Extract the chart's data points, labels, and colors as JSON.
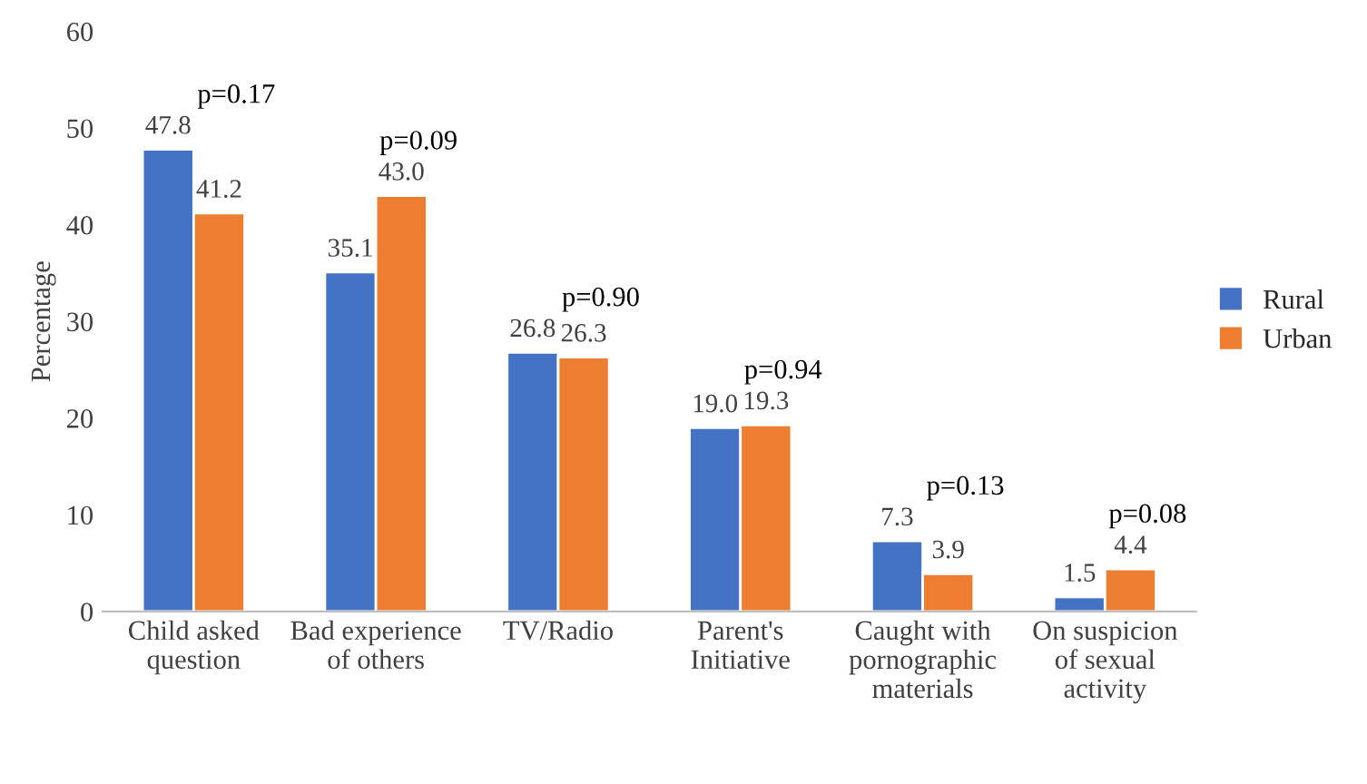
{
  "chart_data": {
    "type": "bar",
    "ylabel": "Percentage",
    "categories": [
      "Child asked\nquestion",
      "Bad experience\nof others",
      "TV/Radio",
      "Parent's\nInitiative",
      "Caught with\npornographic\nmaterials",
      "On suspicion\nof sexual\nactivity"
    ],
    "series": [
      {
        "name": "Rural",
        "color": "#4472c4",
        "values": [
          47.8,
          35.1,
          26.8,
          19.0,
          7.3,
          1.5
        ],
        "value_labels": [
          "47.8",
          "35.1",
          "26.8",
          "19.0",
          "7.3",
          "1.5"
        ]
      },
      {
        "name": "Urban",
        "color": "#ed7d31",
        "values": [
          41.2,
          43.0,
          26.3,
          19.3,
          3.9,
          4.4
        ],
        "value_labels": [
          "41.2",
          "43.0",
          "26.3",
          "19.3",
          "3.9",
          "4.4"
        ]
      }
    ],
    "annotations": [
      "p=0.17",
      "p=0.09",
      "p=0.90",
      "p=0.94",
      "p=0.13",
      "p=0.08"
    ],
    "ylim": [
      0,
      60
    ],
    "yticks": [
      0,
      10,
      20,
      30,
      40,
      50,
      60
    ],
    "grid": false,
    "legend": "right"
  }
}
